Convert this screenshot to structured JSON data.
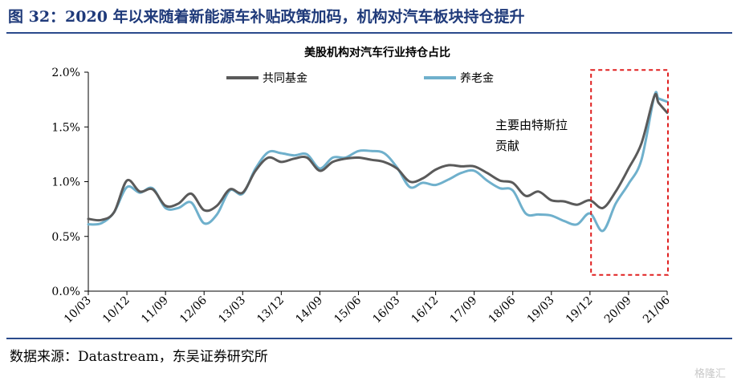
{
  "figure": {
    "title": "图 32：2020 年以来随着新能源车补贴政策加码，机构对汽车板块持仓提升",
    "source": "数据来源：Datastream，东吴证券研究所",
    "watermark": "格隆汇"
  },
  "chart_data": {
    "type": "line",
    "title": "美股机构对汽车行业持仓占比",
    "xlabel": "",
    "ylabel": "",
    "ylim": [
      0,
      0.02
    ],
    "y_tick_labels": [
      "0.0%",
      "0.5%",
      "1.0%",
      "1.5%",
      "2.0%"
    ],
    "y_ticks": [
      0,
      0.005,
      0.01,
      0.015,
      0.02
    ],
    "x_tick_labels": [
      "10/03",
      "10/12",
      "11/09",
      "12/06",
      "13/03",
      "13/12",
      "14/09",
      "15/06",
      "16/03",
      "16/12",
      "17/09",
      "18/06",
      "19/03",
      "19/12",
      "20/09",
      "21/06"
    ],
    "x_range": [
      "2010-03",
      "2021-06"
    ],
    "grid": false,
    "legend_position": "top",
    "series": [
      {
        "name": "共同基金",
        "color": "#5a5a5a",
        "points": [
          [
            "2010-03",
            0.0066
          ],
          [
            "2010-06",
            0.0065
          ],
          [
            "2010-09",
            0.0072
          ],
          [
            "2010-12",
            0.0101
          ],
          [
            "2011-03",
            0.0091
          ],
          [
            "2011-06",
            0.0093
          ],
          [
            "2011-09",
            0.0078
          ],
          [
            "2011-12",
            0.008
          ],
          [
            "2012-03",
            0.0089
          ],
          [
            "2012-06",
            0.0074
          ],
          [
            "2012-09",
            0.0078
          ],
          [
            "2012-12",
            0.0093
          ],
          [
            "2013-03",
            0.009
          ],
          [
            "2013-06",
            0.011
          ],
          [
            "2013-09",
            0.0122
          ],
          [
            "2013-12",
            0.0118
          ],
          [
            "2014-03",
            0.0121
          ],
          [
            "2014-06",
            0.0122
          ],
          [
            "2014-09",
            0.011
          ],
          [
            "2014-12",
            0.0118
          ],
          [
            "2015-03",
            0.0121
          ],
          [
            "2015-06",
            0.0122
          ],
          [
            "2015-09",
            0.012
          ],
          [
            "2015-12",
            0.0118
          ],
          [
            "2016-03",
            0.0112
          ],
          [
            "2016-06",
            0.01
          ],
          [
            "2016-09",
            0.0103
          ],
          [
            "2016-12",
            0.0111
          ],
          [
            "2017-03",
            0.0115
          ],
          [
            "2017-06",
            0.0114
          ],
          [
            "2017-09",
            0.0114
          ],
          [
            "2017-12",
            0.0108
          ],
          [
            "2018-03",
            0.0101
          ],
          [
            "2018-06",
            0.0099
          ],
          [
            "2018-09",
            0.0087
          ],
          [
            "2018-12",
            0.0091
          ],
          [
            "2019-03",
            0.0083
          ],
          [
            "2019-06",
            0.0082
          ],
          [
            "2019-09",
            0.0079
          ],
          [
            "2019-12",
            0.0083
          ],
          [
            "2020-03",
            0.0076
          ],
          [
            "2020-06",
            0.0091
          ],
          [
            "2020-09",
            0.0112
          ],
          [
            "2020-12",
            0.0135
          ],
          [
            "2021-03",
            0.0178
          ],
          [
            "2021-04",
            0.0172
          ],
          [
            "2021-06",
            0.0163
          ]
        ]
      },
      {
        "name": "养老金",
        "color": "#6fb0cc",
        "points": [
          [
            "2010-03",
            0.0061
          ],
          [
            "2010-06",
            0.0062
          ],
          [
            "2010-09",
            0.0072
          ],
          [
            "2010-12",
            0.0095
          ],
          [
            "2011-03",
            0.009
          ],
          [
            "2011-06",
            0.0094
          ],
          [
            "2011-09",
            0.0076
          ],
          [
            "2011-12",
            0.0076
          ],
          [
            "2012-03",
            0.0081
          ],
          [
            "2012-06",
            0.0062
          ],
          [
            "2012-09",
            0.007
          ],
          [
            "2012-12",
            0.0092
          ],
          [
            "2013-03",
            0.0089
          ],
          [
            "2013-06",
            0.0112
          ],
          [
            "2013-09",
            0.0127
          ],
          [
            "2013-12",
            0.0126
          ],
          [
            "2014-03",
            0.0124
          ],
          [
            "2014-06",
            0.0125
          ],
          [
            "2014-09",
            0.0112
          ],
          [
            "2014-12",
            0.0122
          ],
          [
            "2015-03",
            0.0122
          ],
          [
            "2015-06",
            0.0128
          ],
          [
            "2015-09",
            0.0128
          ],
          [
            "2015-12",
            0.0126
          ],
          [
            "2016-03",
            0.0113
          ],
          [
            "2016-06",
            0.0095
          ],
          [
            "2016-09",
            0.0099
          ],
          [
            "2016-12",
            0.0097
          ],
          [
            "2017-03",
            0.0102
          ],
          [
            "2017-06",
            0.0108
          ],
          [
            "2017-09",
            0.011
          ],
          [
            "2017-12",
            0.0101
          ],
          [
            "2018-03",
            0.0094
          ],
          [
            "2018-06",
            0.0092
          ],
          [
            "2018-09",
            0.0071
          ],
          [
            "2018-12",
            0.007
          ],
          [
            "2019-03",
            0.0069
          ],
          [
            "2019-06",
            0.0064
          ],
          [
            "2019-09",
            0.0061
          ],
          [
            "2019-12",
            0.0071
          ],
          [
            "2020-03",
            0.0055
          ],
          [
            "2020-06",
            0.008
          ],
          [
            "2020-09",
            0.0098
          ],
          [
            "2020-12",
            0.012
          ],
          [
            "2021-03",
            0.0178
          ],
          [
            "2021-04",
            0.0176
          ],
          [
            "2021-06",
            0.0173
          ]
        ]
      }
    ],
    "annotation": {
      "line1": "主要由特斯拉",
      "line2": "贡献",
      "box_color": "#e02020",
      "box_x_range": [
        "2020-01",
        "2021-06"
      ],
      "box_y_range": [
        0.00075,
        0.0202
      ]
    }
  }
}
